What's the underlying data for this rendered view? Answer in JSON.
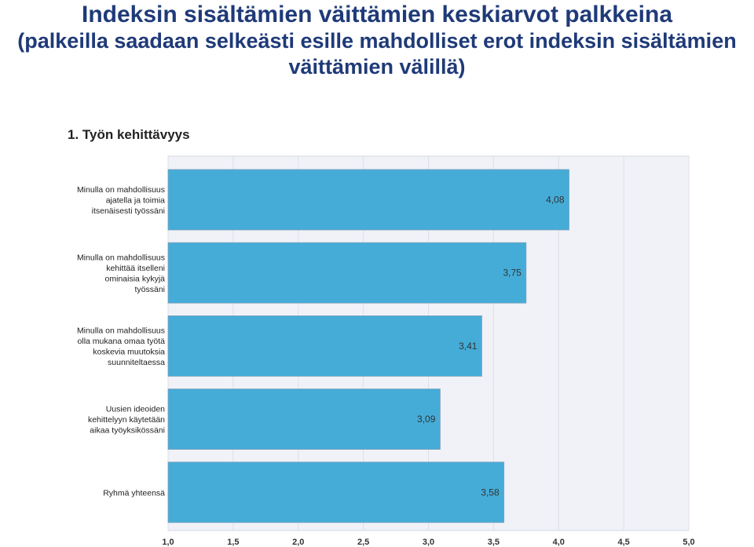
{
  "slide": {
    "title": "Indeksin sisältämien väittämien keskiarvot palkkeina",
    "subtitle": "(palkeilla saadaan selkeästi esille mahdolliset erot indeksin sisältämien väittämien välillä)"
  },
  "chart_data": {
    "type": "bar",
    "orientation": "horizontal",
    "title": "1. Työn kehittävyys",
    "categories": [
      [
        "Minulla on mahdollisuus",
        "ajatella ja toimia",
        "itsenäisesti työssäni"
      ],
      [
        "Minulla on mahdollisuus",
        "kehittää itselleni",
        "ominaisia kykyjä",
        "työssäni"
      ],
      [
        "Minulla on mahdollisuus",
        "olla mukana omaa työtä",
        "koskevia muutoksia",
        "suunniteltaessa"
      ],
      [
        "Uusien ideoiden",
        "kehittelyyn käytetään",
        "aikaa työyksikössäni"
      ],
      [
        "Ryhmä yhteensä"
      ]
    ],
    "values": [
      4.08,
      3.75,
      3.41,
      3.09,
      3.58
    ],
    "value_labels": [
      "4,08",
      "3,75",
      "3,41",
      "3,09",
      "3,58"
    ],
    "xlim": [
      1.0,
      5.0
    ],
    "x_ticks": [
      "1,0",
      "1,5",
      "2,0",
      "2,5",
      "3,0",
      "3,5",
      "4,0",
      "4,5",
      "5,0"
    ],
    "x_tick_values": [
      1.0,
      1.5,
      2.0,
      2.5,
      3.0,
      3.5,
      4.0,
      4.5,
      5.0
    ],
    "grid": true,
    "bar_color": "#45acd8",
    "plot_background": "#f0f2f8"
  }
}
